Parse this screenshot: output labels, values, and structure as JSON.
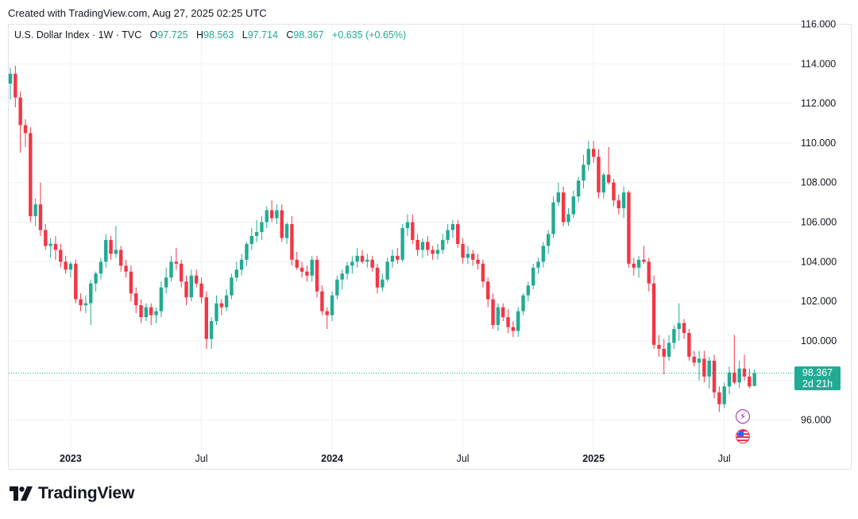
{
  "header": {
    "created": "Created with TradingView.com, Aug 27, 2025 02:25 UTC"
  },
  "legend": {
    "symbol": "U.S. Dollar Index · 1W · TVC",
    "open_label": "O",
    "open": "97.725",
    "high_label": "H",
    "high": "98.563",
    "low_label": "L",
    "low": "97.714",
    "close_label": "C",
    "close": "98.367",
    "change": "+0.635 (+0.65%)"
  },
  "price_tag": {
    "price": "98.367",
    "countdown": "2d 21h"
  },
  "footer": {
    "brand": "TradingView",
    "logo_icon": "tradingview-logo-icon"
  },
  "events": {
    "lightning_icon": "lightning-icon",
    "flag_icon": "us-flag-icon"
  },
  "colors": {
    "up": "#22ab94",
    "down": "#f23645",
    "grid": "#f0f3fa",
    "axis_text": "#131722",
    "price_line": "#22ab94"
  },
  "chart_data": {
    "type": "candlestick",
    "title": "U.S. Dollar Index · 1W · TVC",
    "x_axis": {
      "ticks": [
        "2023",
        "Jul",
        "2024",
        "Jul",
        "2025",
        "Jul"
      ],
      "bold_ticks": [
        "2023",
        "2024",
        "2025"
      ]
    },
    "y_axis": {
      "ticks": [
        "96.000",
        "98.000",
        "100.000",
        "102.000",
        "104.000",
        "106.000",
        "108.000",
        "110.000",
        "112.000",
        "114.000",
        "116.000"
      ],
      "range": [
        94.6,
        116.0
      ]
    },
    "last_price": 98.367,
    "x_domain": [
      0,
      150
    ],
    "tick_positions": [
      12,
      38,
      64,
      90,
      116,
      142
    ],
    "ohlc": [
      [
        113.0,
        113.8,
        112.2,
        113.5
      ],
      [
        113.5,
        113.9,
        111.8,
        112.3
      ],
      [
        112.3,
        112.6,
        109.5,
        110.9
      ],
      [
        110.9,
        111.2,
        109.8,
        110.5
      ],
      [
        110.5,
        110.8,
        106.0,
        106.3
      ],
      [
        106.3,
        107.2,
        105.8,
        106.9
      ],
      [
        106.9,
        108.0,
        105.3,
        105.6
      ],
      [
        105.6,
        105.9,
        104.6,
        104.8
      ],
      [
        104.8,
        105.2,
        104.2,
        104.9
      ],
      [
        104.9,
        105.3,
        104.1,
        104.6
      ],
      [
        104.6,
        104.9,
        103.7,
        104.0
      ],
      [
        104.0,
        104.3,
        103.4,
        103.6
      ],
      [
        103.6,
        104.0,
        103.2,
        103.9
      ],
      [
        103.9,
        104.1,
        101.9,
        102.1
      ],
      [
        102.1,
        102.4,
        101.5,
        101.8
      ],
      [
        101.8,
        102.3,
        101.4,
        101.9
      ],
      [
        101.9,
        103.1,
        100.8,
        102.9
      ],
      [
        102.9,
        103.5,
        102.5,
        103.4
      ],
      [
        103.4,
        104.2,
        103.1,
        104.0
      ],
      [
        104.0,
        105.4,
        103.7,
        105.1
      ],
      [
        105.1,
        105.3,
        104.1,
        104.4
      ],
      [
        104.4,
        105.8,
        104.2,
        104.6
      ],
      [
        104.6,
        104.8,
        103.5,
        103.8
      ],
      [
        103.8,
        104.1,
        103.2,
        103.5
      ],
      [
        103.5,
        103.8,
        102.0,
        102.4
      ],
      [
        102.4,
        102.7,
        101.4,
        101.8
      ],
      [
        101.8,
        102.1,
        100.9,
        101.2
      ],
      [
        101.2,
        101.9,
        101.0,
        101.7
      ],
      [
        101.7,
        101.9,
        100.8,
        101.3
      ],
      [
        101.3,
        101.7,
        100.9,
        101.5
      ],
      [
        101.5,
        103.0,
        101.2,
        102.7
      ],
      [
        102.7,
        103.7,
        102.4,
        103.2
      ],
      [
        103.2,
        104.3,
        103.0,
        104.0
      ],
      [
        104.0,
        104.7,
        103.6,
        103.9
      ],
      [
        103.9,
        104.1,
        102.7,
        103.0
      ],
      [
        103.0,
        103.3,
        101.8,
        102.2
      ],
      [
        102.2,
        103.6,
        102.0,
        103.3
      ],
      [
        103.3,
        103.6,
        102.7,
        102.9
      ],
      [
        102.9,
        103.2,
        101.9,
        102.2
      ],
      [
        102.2,
        102.5,
        99.6,
        100.1
      ],
      [
        100.1,
        101.2,
        99.6,
        101.0
      ],
      [
        101.0,
        102.3,
        100.8,
        101.9
      ],
      [
        101.9,
        102.1,
        101.3,
        101.7
      ],
      [
        101.7,
        102.6,
        101.5,
        102.3
      ],
      [
        102.3,
        103.4,
        102.1,
        103.2
      ],
      [
        103.2,
        104.0,
        103.0,
        103.6
      ],
      [
        103.6,
        104.4,
        103.3,
        104.1
      ],
      [
        104.1,
        105.0,
        103.8,
        104.9
      ],
      [
        104.9,
        105.7,
        104.6,
        105.3
      ],
      [
        105.3,
        106.1,
        105.0,
        105.5
      ],
      [
        105.5,
        106.3,
        105.1,
        106.0
      ],
      [
        106.0,
        106.8,
        105.7,
        106.6
      ],
      [
        106.6,
        107.1,
        106.0,
        106.2
      ],
      [
        106.2,
        106.9,
        105.9,
        106.6
      ],
      [
        106.6,
        106.9,
        105.0,
        105.2
      ],
      [
        105.2,
        106.0,
        104.9,
        105.9
      ],
      [
        105.9,
        106.3,
        103.8,
        104.1
      ],
      [
        104.1,
        104.5,
        103.6,
        103.7
      ],
      [
        103.7,
        104.0,
        103.2,
        103.5
      ],
      [
        103.5,
        103.8,
        103.0,
        103.3
      ],
      [
        103.3,
        104.3,
        103.0,
        104.1
      ],
      [
        104.1,
        104.3,
        102.2,
        102.5
      ],
      [
        102.5,
        102.8,
        101.3,
        101.5
      ],
      [
        101.5,
        101.7,
        100.6,
        101.3
      ],
      [
        101.3,
        102.5,
        101.0,
        102.3
      ],
      [
        102.3,
        103.3,
        102.1,
        103.1
      ],
      [
        103.1,
        103.6,
        102.6,
        103.4
      ],
      [
        103.4,
        104.0,
        103.1,
        103.8
      ],
      [
        103.8,
        104.3,
        103.4,
        104.0
      ],
      [
        104.0,
        104.7,
        103.7,
        104.3
      ],
      [
        104.3,
        104.6,
        103.9,
        104.0
      ],
      [
        104.0,
        104.4,
        103.7,
        104.1
      ],
      [
        104.1,
        104.3,
        103.5,
        103.7
      ],
      [
        103.7,
        103.9,
        102.4,
        102.7
      ],
      [
        102.7,
        103.4,
        102.5,
        103.1
      ],
      [
        103.1,
        104.2,
        103.0,
        104.0
      ],
      [
        104.0,
        104.6,
        103.7,
        104.3
      ],
      [
        104.3,
        104.7,
        103.9,
        104.1
      ],
      [
        104.1,
        105.9,
        104.0,
        105.7
      ],
      [
        105.7,
        106.4,
        105.3,
        106.0
      ],
      [
        106.0,
        106.4,
        104.9,
        105.1
      ],
      [
        105.1,
        105.4,
        104.3,
        104.6
      ],
      [
        104.6,
        105.2,
        104.2,
        105.0
      ],
      [
        105.0,
        105.3,
        104.3,
        104.6
      ],
      [
        104.6,
        104.8,
        104.1,
        104.4
      ],
      [
        104.4,
        104.9,
        104.1,
        104.6
      ],
      [
        104.6,
        105.4,
        104.4,
        105.1
      ],
      [
        105.1,
        105.9,
        104.9,
        105.6
      ],
      [
        105.6,
        106.1,
        105.2,
        105.9
      ],
      [
        105.9,
        106.1,
        104.7,
        104.9
      ],
      [
        104.9,
        105.2,
        103.9,
        104.2
      ],
      [
        104.2,
        104.8,
        103.9,
        104.4
      ],
      [
        104.4,
        104.6,
        103.8,
        104.1
      ],
      [
        104.1,
        104.4,
        103.6,
        103.9
      ],
      [
        103.9,
        104.1,
        102.7,
        103.0
      ],
      [
        103.0,
        103.2,
        101.7,
        102.1
      ],
      [
        102.1,
        102.4,
        100.6,
        100.8
      ],
      [
        100.8,
        101.9,
        100.5,
        101.7
      ],
      [
        101.7,
        101.9,
        101.0,
        101.2
      ],
      [
        101.2,
        101.6,
        100.4,
        100.7
      ],
      [
        100.7,
        101.0,
        100.2,
        100.5
      ],
      [
        100.5,
        101.7,
        100.2,
        101.5
      ],
      [
        101.5,
        102.4,
        101.3,
        102.3
      ],
      [
        102.3,
        103.0,
        102.0,
        102.8
      ],
      [
        102.8,
        103.9,
        102.6,
        103.7
      ],
      [
        103.7,
        104.2,
        103.4,
        104.0
      ],
      [
        104.0,
        105.0,
        103.7,
        104.8
      ],
      [
        104.8,
        105.6,
        104.4,
        105.4
      ],
      [
        105.4,
        107.3,
        105.2,
        107.0
      ],
      [
        107.0,
        108.0,
        106.8,
        107.5
      ],
      [
        107.5,
        107.8,
        105.8,
        106.0
      ],
      [
        106.0,
        106.7,
        105.8,
        106.4
      ],
      [
        106.4,
        107.6,
        106.2,
        107.3
      ],
      [
        107.3,
        108.3,
        107.0,
        108.1
      ],
      [
        108.1,
        109.4,
        107.7,
        108.9
      ],
      [
        108.9,
        110.1,
        108.6,
        109.7
      ],
      [
        109.7,
        110.1,
        109.0,
        109.3
      ],
      [
        109.3,
        109.7,
        107.2,
        107.5
      ],
      [
        107.5,
        108.5,
        107.2,
        108.4
      ],
      [
        108.4,
        109.8,
        107.9,
        108.0
      ],
      [
        108.0,
        108.2,
        106.8,
        107.1
      ],
      [
        107.1,
        107.4,
        106.4,
        106.7
      ],
      [
        106.7,
        107.8,
        106.2,
        107.5
      ],
      [
        107.5,
        107.6,
        103.7,
        103.9
      ],
      [
        103.9,
        104.2,
        103.3,
        103.7
      ],
      [
        103.7,
        104.3,
        103.2,
        104.1
      ],
      [
        104.1,
        104.8,
        103.9,
        104.0
      ],
      [
        104.0,
        104.2,
        102.5,
        102.9
      ],
      [
        102.9,
        103.3,
        99.6,
        99.8
      ],
      [
        99.8,
        100.3,
        99.2,
        99.6
      ],
      [
        99.6,
        100.1,
        98.3,
        99.2
      ],
      [
        99.2,
        100.3,
        99.0,
        99.9
      ],
      [
        99.9,
        100.8,
        99.6,
        100.6
      ],
      [
        100.6,
        101.9,
        100.0,
        100.9
      ],
      [
        100.9,
        101.1,
        100.1,
        100.4
      ],
      [
        100.4,
        100.6,
        99.0,
        99.2
      ],
      [
        99.2,
        99.5,
        98.7,
        98.9
      ],
      [
        98.9,
        99.5,
        98.0,
        99.1
      ],
      [
        99.1,
        99.5,
        97.9,
        98.2
      ],
      [
        98.2,
        99.2,
        97.6,
        99.0
      ],
      [
        99.0,
        99.3,
        97.1,
        97.4
      ],
      [
        97.4,
        97.7,
        96.4,
        96.8
      ],
      [
        96.8,
        97.9,
        96.6,
        97.7
      ],
      [
        97.7,
        98.7,
        97.3,
        98.4
      ],
      [
        98.4,
        100.3,
        97.8,
        97.9
      ],
      [
        97.9,
        99.0,
        97.6,
        98.6
      ],
      [
        98.6,
        99.3,
        98.0,
        98.2
      ],
      [
        98.2,
        98.6,
        97.6,
        97.7
      ],
      [
        97.725,
        98.563,
        97.714,
        98.367
      ]
    ]
  }
}
